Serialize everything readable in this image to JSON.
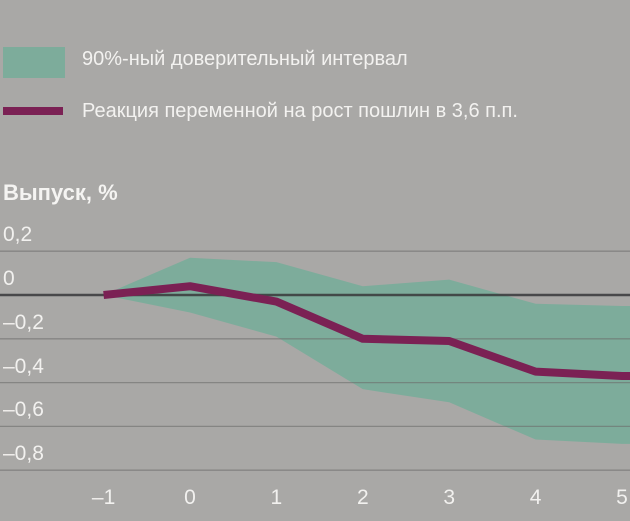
{
  "background_color": "#a9a8a6",
  "text_color": "#f3f2f0",
  "legend": {
    "items": [
      {
        "swatch": "band",
        "label": "90%-ный доверительный интервал",
        "color": "#7dac9b"
      },
      {
        "swatch": "line",
        "label": "Реакция переменной на рост пошлин в 3,6 п.п.",
        "color": "#7b2154"
      }
    ]
  },
  "chart_data": {
    "type": "line",
    "title": "Выпуск, %",
    "xlabel": "",
    "ylabel": "Выпуск, %",
    "x": [
      -1,
      0,
      1,
      2,
      3,
      4,
      5
    ],
    "series": [
      {
        "name": "Реакция переменной на рост пошлин в 3,6 п.п.",
        "color": "#7b2154",
        "values": [
          0,
          0.04,
          -0.03,
          -0.2,
          -0.21,
          -0.35,
          -0.37
        ]
      }
    ],
    "band": {
      "name": "90%-ный доверительный интервал",
      "color": "#7dac9b",
      "upper": [
        0,
        0.17,
        0.15,
        0.04,
        0.07,
        -0.04,
        -0.05
      ],
      "lower": [
        0,
        -0.08,
        -0.19,
        -0.43,
        -0.49,
        -0.66,
        -0.68
      ]
    },
    "xticks": [
      {
        "v": -1,
        "label": "–1"
      },
      {
        "v": 0,
        "label": "0"
      },
      {
        "v": 1,
        "label": "1"
      },
      {
        "v": 2,
        "label": "2"
      },
      {
        "v": 3,
        "label": "3"
      },
      {
        "v": 4,
        "label": "4"
      },
      {
        "v": 5,
        "label": "5"
      }
    ],
    "yticks": [
      {
        "v": 0.2,
        "label": "0,2"
      },
      {
        "v": 0,
        "label": "0"
      },
      {
        "v": -0.2,
        "label": "–0,2"
      },
      {
        "v": -0.4,
        "label": "–0,4"
      },
      {
        "v": -0.6,
        "label": "–0,6"
      },
      {
        "v": -0.8,
        "label": "–0,8"
      }
    ],
    "ylim": [
      -0.9,
      0.3
    ],
    "grid": "horizontal",
    "zero_line": true,
    "legend_position": "top-left"
  }
}
